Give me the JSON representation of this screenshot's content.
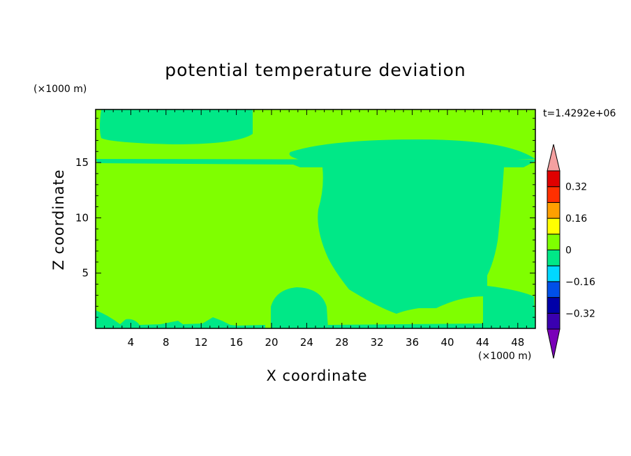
{
  "chart_data": {
    "type": "heatmap",
    "title": "potential temperature deviation",
    "xlabel": "X coordinate",
    "ylabel": "Z coordinate",
    "x_unit": "(×1000 m)",
    "y_unit": "(×1000 m)",
    "time_label": "t=1.4292e+06",
    "xlim": [
      0,
      50
    ],
    "ylim": [
      0,
      19.8
    ],
    "x_ticks": [
      4,
      8,
      12,
      16,
      20,
      24,
      28,
      32,
      36,
      40,
      44,
      48
    ],
    "y_ticks": [
      5,
      10,
      15
    ],
    "colorbar": {
      "labels": [
        "0.32",
        "0.16",
        "0",
        "−0.16",
        "−0.32"
      ],
      "label_values": [
        0.32,
        0.16,
        0,
        -0.16,
        -0.32
      ],
      "levels": [
        -0.4,
        -0.32,
        -0.24,
        -0.16,
        -0.08,
        0,
        0.08,
        0.16,
        0.24,
        0.32,
        0.4
      ],
      "colors": [
        "#3a00b0",
        "#0000a8",
        "#0050e8",
        "#00d8ff",
        "#00e887",
        "#7fff00",
        "#ffff00",
        "#ffa000",
        "#ff3000",
        "#e00000"
      ],
      "under_color": "#7a00b8",
      "over_color": "#f4a0a0"
    },
    "field": {
      "background_range": [
        0,
        0.08
      ],
      "regions_range": [
        -0.08,
        0
      ]
    }
  }
}
